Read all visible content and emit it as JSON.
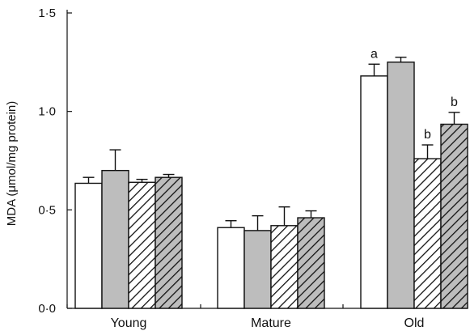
{
  "chart_data": {
    "type": "bar",
    "ylabel": "MDA (μmol/mg protein)",
    "ylim": [
      0,
      1.5
    ],
    "yticks": [
      0,
      0.5,
      1.0,
      1.5
    ],
    "ytick_labels": [
      "0·0",
      "0·5",
      "1·0",
      "1·5"
    ],
    "categories": [
      "Young",
      "Mature",
      "Old"
    ],
    "grid": false,
    "legend": "none",
    "series": [
      {
        "fill": "white",
        "values": [
          0.635,
          0.41,
          1.18
        ],
        "errors": [
          0.03,
          0.035,
          0.06
        ],
        "annotations": [
          "",
          "",
          "a"
        ]
      },
      {
        "fill": "grey",
        "values": [
          0.7,
          0.395,
          1.25
        ],
        "errors": [
          0.105,
          0.075,
          0.025
        ],
        "annotations": [
          "",
          "",
          ""
        ]
      },
      {
        "fill": "hatched-white",
        "values": [
          0.64,
          0.42,
          0.76
        ],
        "errors": [
          0.015,
          0.095,
          0.07
        ],
        "annotations": [
          "",
          "",
          "b"
        ]
      },
      {
        "fill": "hatched-grey",
        "values": [
          0.665,
          0.46,
          0.935
        ],
        "errors": [
          0.015,
          0.035,
          0.06
        ],
        "annotations": [
          "",
          "",
          "b"
        ]
      }
    ]
  },
  "colors": {
    "grey_fill": "#bdbdbd",
    "white_fill": "#ffffff",
    "stroke": "#111111"
  }
}
